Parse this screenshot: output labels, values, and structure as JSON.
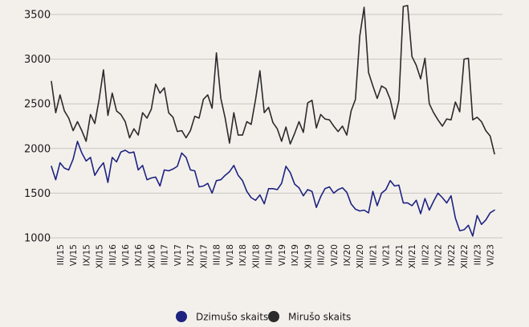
{
  "chart_data": {
    "type": "line",
    "title": "",
    "xlabel": "",
    "ylabel": "",
    "ylim": [
      1000,
      3500
    ],
    "yticks": [
      1000,
      1500,
      2000,
      2500,
      3000,
      3500
    ],
    "grid": "horizontal",
    "legend": "bottom-center",
    "x_tick_labels": [
      "III/15",
      "VI/15",
      "IX/15",
      "XII/15",
      "III/16",
      "VI/16",
      "IX/16",
      "XII/16",
      "III/17",
      "VI/17",
      "IX/17",
      "XII/17",
      "III/18",
      "VI/18",
      "IX/18",
      "XII/18",
      "III/19",
      "VI/19",
      "IX/19",
      "XII/19",
      "III/20",
      "VI/20",
      "IX/20",
      "XII/20",
      "III/21",
      "VI/21",
      "IX/21",
      "XII/21",
      "III/22",
      "VI/22",
      "IX/22",
      "XII/22",
      "III/23",
      "VI/23"
    ],
    "x_tick_start_index": 2,
    "x_tick_step": 3,
    "series": [
      {
        "name": "Dzimušo skaits",
        "color": "#1e2380",
        "values": [
          1800,
          1650,
          1840,
          1780,
          1760,
          1880,
          2080,
          1950,
          1860,
          1900,
          1700,
          1780,
          1840,
          1620,
          1900,
          1850,
          1960,
          1980,
          1950,
          1960,
          1760,
          1810,
          1650,
          1670,
          1680,
          1580,
          1760,
          1750,
          1770,
          1800,
          1950,
          1900,
          1760,
          1750,
          1570,
          1580,
          1610,
          1500,
          1640,
          1650,
          1700,
          1740,
          1810,
          1700,
          1640,
          1520,
          1450,
          1420,
          1480,
          1380,
          1550,
          1550,
          1540,
          1610,
          1800,
          1730,
          1600,
          1560,
          1470,
          1540,
          1520,
          1340,
          1460,
          1550,
          1570,
          1500,
          1540,
          1560,
          1510,
          1380,
          1320,
          1300,
          1310,
          1280,
          1520,
          1360,
          1500,
          1540,
          1640,
          1580,
          1590,
          1390,
          1390,
          1360,
          1420,
          1270,
          1440,
          1310,
          1410,
          1500,
          1450,
          1390,
          1470,
          1220,
          1080,
          1090,
          1140,
          1020,
          1250,
          1150,
          1200,
          1280,
          1310
        ]
      },
      {
        "name": "Mirušo skaits",
        "color": "#2b2b2b",
        "values": [
          2750,
          2400,
          2600,
          2420,
          2340,
          2200,
          2300,
          2200,
          2080,
          2380,
          2280,
          2550,
          2880,
          2370,
          2620,
          2420,
          2380,
          2300,
          2120,
          2220,
          2150,
          2400,
          2340,
          2440,
          2720,
          2620,
          2680,
          2400,
          2350,
          2190,
          2200,
          2120,
          2200,
          2360,
          2340,
          2550,
          2600,
          2450,
          3070,
          2560,
          2340,
          2060,
          2400,
          2150,
          2150,
          2300,
          2270,
          2550,
          2870,
          2400,
          2460,
          2290,
          2220,
          2080,
          2240,
          2050,
          2170,
          2300,
          2180,
          2510,
          2540,
          2230,
          2380,
          2330,
          2320,
          2250,
          2190,
          2250,
          2150,
          2420,
          2550,
          3260,
          3580,
          2850,
          2700,
          2560,
          2700,
          2670,
          2550,
          2330,
          2540,
          3590,
          3600,
          3030,
          2930,
          2780,
          3010,
          2500,
          2400,
          2320,
          2250,
          2330,
          2320,
          2520,
          2410,
          3000,
          3010,
          2320,
          2350,
          2300,
          2200,
          2140,
          1940
        ]
      }
    ]
  }
}
